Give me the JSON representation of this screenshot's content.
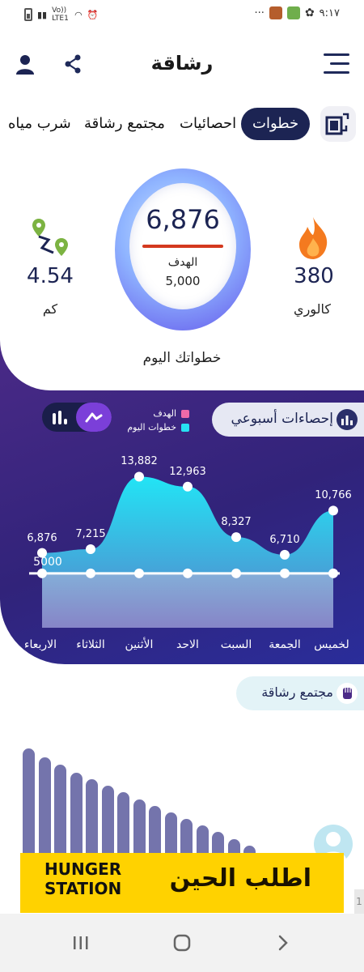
{
  "status_bar": {
    "time": "٩:١٧",
    "network_label": "Vo)) LTE1",
    "more": "···"
  },
  "header": {
    "title": "رشاقة"
  },
  "tabs": [
    {
      "label": "خطوات",
      "active": true
    },
    {
      "label": "احصائيات",
      "active": false
    },
    {
      "label": "مجتمع رشاقة",
      "active": false
    },
    {
      "label": "شرب مياه",
      "active": false
    }
  ],
  "summary": {
    "calories_value": "380",
    "calories_label": "كالوري",
    "distance_value": "4.54",
    "distance_label": "كم",
    "steps_value": "6,876",
    "goal_label": "الهدف",
    "goal_value": "5,000",
    "today_label": "خطواتك اليوم"
  },
  "weekly": {
    "title": "إحصاءات أسبوعي",
    "legend": [
      {
        "label": "الهدف",
        "color": "#f06aa9"
      },
      {
        "label": "خطوات اليوم",
        "color": "#27e1f2"
      }
    ]
  },
  "chart_data": {
    "type": "area",
    "categories": [
      "الاربعاء",
      "الثلاثاء",
      "الأثنين",
      "الاحد",
      "السبت",
      "الجمعة",
      "لخميس"
    ],
    "series": [
      {
        "name": "خطوات اليوم",
        "values": [
          6876,
          7215,
          13882,
          12963,
          8327,
          6710,
          10766
        ],
        "labels": [
          "6,876",
          "7,215",
          "13,882",
          "12,963",
          "8,327",
          "6,710",
          "10,766"
        ],
        "color": "#27e1f2"
      },
      {
        "name": "الهدف",
        "values": [
          5000,
          5000,
          5000,
          5000,
          5000,
          5000,
          5000
        ],
        "color": "#ffffff"
      }
    ],
    "goal_label": "5000",
    "ylim": [
      0,
      16000
    ]
  },
  "community": {
    "title": "مجتمع رشاقة",
    "bar_levels": [
      1.0,
      0.92,
      0.85,
      0.78,
      0.72,
      0.66,
      0.6,
      0.54,
      0.48,
      0.42,
      0.36,
      0.3,
      0.24,
      0.18,
      0.12
    ]
  },
  "ad": {
    "logo_line1": "HUNGER",
    "logo_line2": "STATION",
    "text": "اطلب الحين",
    "side_label": "1"
  },
  "colors": {
    "navy": "#1c2453",
    "accent_purple": "#7b3fd9",
    "flame": "#f47a1f",
    "map_green": "#7cb342"
  }
}
